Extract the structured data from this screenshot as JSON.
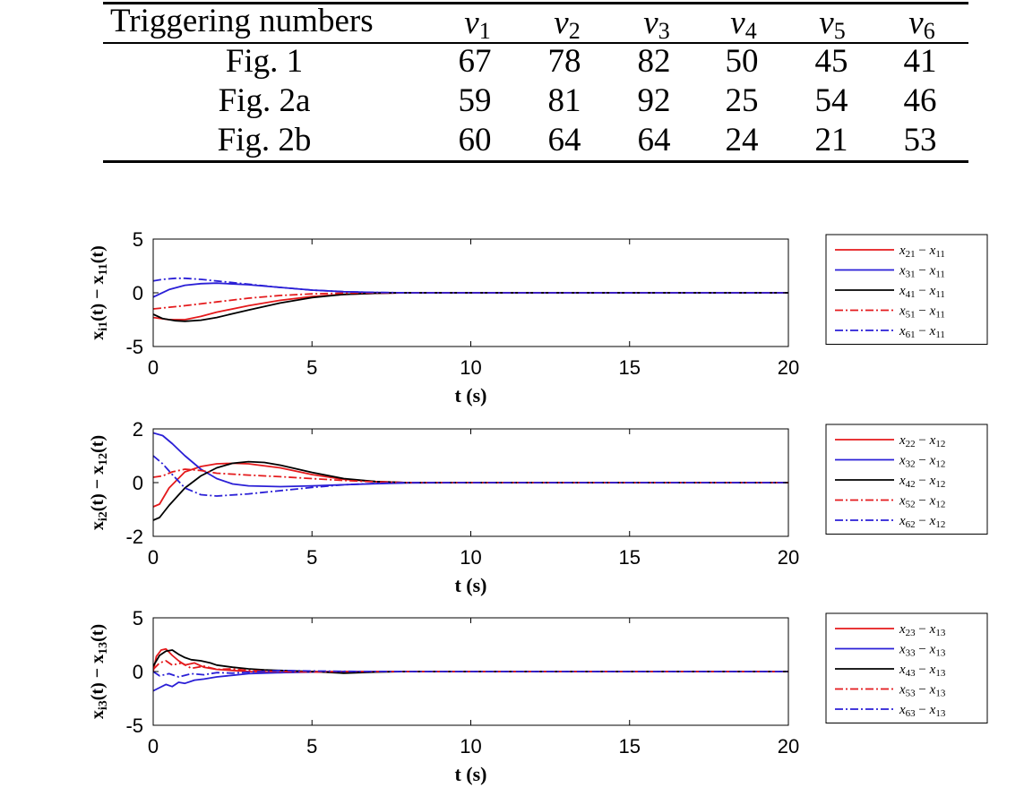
{
  "table": {
    "header": [
      "Triggering numbers",
      "v1",
      "v2",
      "v3",
      "v4",
      "v5",
      "v6"
    ],
    "header_vars": [
      {
        "base": "v",
        "sub": "1"
      },
      {
        "base": "v",
        "sub": "2"
      },
      {
        "base": "v",
        "sub": "3"
      },
      {
        "base": "v",
        "sub": "4"
      },
      {
        "base": "v",
        "sub": "5"
      },
      {
        "base": "v",
        "sub": "6"
      }
    ],
    "rows": [
      {
        "label": "Fig. 1",
        "values": [
          "67",
          "78",
          "82",
          "50",
          "45",
          "41"
        ]
      },
      {
        "label": "Fig. 2a",
        "values": [
          "59",
          "81",
          "92",
          "25",
          "54",
          "46"
        ]
      },
      {
        "label": "Fig. 2b",
        "values": [
          "60",
          "64",
          "64",
          "24",
          "21",
          "53"
        ]
      }
    ]
  },
  "chart_data": [
    {
      "type": "line",
      "xlabel": "t (s)",
      "ylabel": "x_i1(t) - x_11(t)",
      "ylabel_parts": {
        "a": "x",
        "asub": "i1",
        "b": "(t) − x",
        "bsub": "11",
        "c": "(t)"
      },
      "xlim": [
        0,
        20
      ],
      "ylim": [
        -5,
        5
      ],
      "xticks": [
        "0",
        "5",
        "10",
        "15",
        "20"
      ],
      "yticks": [
        "5",
        "0",
        "-5"
      ],
      "grid": false,
      "legend": "right",
      "series": [
        {
          "name": "x21 - x11",
          "legend_parts": [
            "x",
            "21",
            "x",
            "11"
          ],
          "color": "#e41a1c",
          "dash": "solid",
          "x": [
            0,
            0.5,
            1,
            1.5,
            2,
            3,
            4,
            5,
            6,
            7,
            8,
            10,
            20
          ],
          "y": [
            -2.3,
            -2.5,
            -2.5,
            -2.2,
            -1.8,
            -1.2,
            -0.7,
            -0.35,
            -0.15,
            -0.05,
            0,
            0,
            0
          ]
        },
        {
          "name": "x31 - x11",
          "legend_parts": [
            "x",
            "31",
            "x",
            "11"
          ],
          "color": "#2a1fd6",
          "dash": "solid",
          "x": [
            0,
            0.5,
            1,
            1.5,
            2,
            3,
            4,
            5,
            6,
            7,
            8,
            10,
            20
          ],
          "y": [
            -0.4,
            0.3,
            0.7,
            0.85,
            0.9,
            0.75,
            0.5,
            0.25,
            0.1,
            0.03,
            0,
            0,
            0
          ]
        },
        {
          "name": "x41 - x11",
          "legend_parts": [
            "x",
            "41",
            "x",
            "11"
          ],
          "color": "#000000",
          "dash": "solid",
          "x": [
            0,
            0.3,
            0.7,
            1,
            1.5,
            2,
            3,
            4,
            5,
            6,
            7,
            8,
            10,
            20
          ],
          "y": [
            -2.0,
            -2.4,
            -2.6,
            -2.65,
            -2.55,
            -2.3,
            -1.6,
            -0.95,
            -0.45,
            -0.15,
            -0.04,
            0,
            0,
            0
          ]
        },
        {
          "name": "x51 - x11",
          "legend_parts": [
            "x",
            "51",
            "x",
            "11"
          ],
          "color": "#e41a1c",
          "dash": "dashdot",
          "x": [
            0,
            1,
            2,
            3,
            4,
            5,
            6,
            7,
            8,
            10,
            20
          ],
          "y": [
            -1.5,
            -1.2,
            -0.85,
            -0.5,
            -0.25,
            -0.1,
            -0.03,
            0,
            0,
            0,
            0
          ]
        },
        {
          "name": "x61 - x11",
          "legend_parts": [
            "x",
            "61",
            "x",
            "11"
          ],
          "color": "#2a1fd6",
          "dash": "dashdot",
          "x": [
            0,
            0.3,
            0.7,
            1,
            1.5,
            2,
            3,
            4,
            5,
            6,
            7,
            8,
            10,
            20
          ],
          "y": [
            1.1,
            1.25,
            1.35,
            1.35,
            1.25,
            1.1,
            0.8,
            0.5,
            0.25,
            0.1,
            0.03,
            0,
            0,
            0
          ]
        }
      ]
    },
    {
      "type": "line",
      "xlabel": "t (s)",
      "ylabel": "x_i2(t) - x_12(t)",
      "ylabel_parts": {
        "a": "x",
        "asub": "i2",
        "b": "(t) − x",
        "bsub": "12",
        "c": "(t)"
      },
      "xlim": [
        0,
        20
      ],
      "ylim": [
        -2,
        2
      ],
      "xticks": [
        "0",
        "5",
        "10",
        "15",
        "20"
      ],
      "yticks": [
        "2",
        "0",
        "-2"
      ],
      "grid": false,
      "legend": "right",
      "series": [
        {
          "name": "x22 - x12",
          "legend_parts": [
            "x",
            "22",
            "x",
            "12"
          ],
          "color": "#e41a1c",
          "dash": "solid",
          "x": [
            0,
            0.2,
            0.5,
            1,
            1.5,
            2,
            2.5,
            3,
            4,
            5,
            6,
            7,
            8,
            10,
            20
          ],
          "y": [
            -0.9,
            -0.8,
            -0.2,
            0.4,
            0.6,
            0.7,
            0.72,
            0.7,
            0.55,
            0.3,
            0.12,
            0.04,
            0,
            0,
            0
          ]
        },
        {
          "name": "x32 - x12",
          "legend_parts": [
            "x",
            "32",
            "x",
            "12"
          ],
          "color": "#2a1fd6",
          "dash": "solid",
          "x": [
            0,
            0.3,
            0.6,
            1,
            1.5,
            2,
            2.5,
            3,
            4,
            5,
            6,
            7,
            8,
            10,
            20
          ],
          "y": [
            1.85,
            1.75,
            1.45,
            1.0,
            0.5,
            0.15,
            -0.05,
            -0.12,
            -0.15,
            -0.12,
            -0.08,
            -0.04,
            -0.01,
            0,
            0
          ]
        },
        {
          "name": "x42 - x12",
          "legend_parts": [
            "x",
            "42",
            "x",
            "12"
          ],
          "color": "#000000",
          "dash": "solid",
          "x": [
            0,
            0.2,
            0.5,
            1,
            1.5,
            2,
            2.5,
            3,
            3.5,
            4,
            5,
            6,
            7,
            8,
            10,
            20
          ],
          "y": [
            -1.4,
            -1.3,
            -0.85,
            -0.2,
            0.25,
            0.55,
            0.72,
            0.78,
            0.75,
            0.65,
            0.38,
            0.15,
            0.04,
            0,
            0,
            0
          ]
        },
        {
          "name": "x52 - x12",
          "legend_parts": [
            "x",
            "52",
            "x",
            "12"
          ],
          "color": "#e41a1c",
          "dash": "dashdot",
          "x": [
            0,
            0.3,
            0.6,
            1,
            1.5,
            2,
            3,
            4,
            5,
            6,
            7,
            8,
            10,
            20
          ],
          "y": [
            0.2,
            0.25,
            0.4,
            0.5,
            0.45,
            0.35,
            0.28,
            0.22,
            0.15,
            0.08,
            0.03,
            0,
            0,
            0
          ]
        },
        {
          "name": "x62 - x12",
          "legend_parts": [
            "x",
            "62",
            "x",
            "12"
          ],
          "color": "#2a1fd6",
          "dash": "dashdot",
          "x": [
            0,
            0.3,
            0.6,
            1,
            1.5,
            2,
            3,
            4,
            5,
            6,
            7,
            8,
            10,
            20
          ],
          "y": [
            1.0,
            0.7,
            0.3,
            -0.2,
            -0.45,
            -0.5,
            -0.42,
            -0.3,
            -0.18,
            -0.08,
            -0.03,
            0,
            0,
            0
          ]
        }
      ]
    },
    {
      "type": "line",
      "xlabel": "t (s)",
      "ylabel": "x_i3(t) - x_13(t)",
      "ylabel_parts": {
        "a": "x",
        "asub": "i3",
        "b": "(t) − x",
        "bsub": "13",
        "c": "(t)"
      },
      "xlim": [
        0,
        20
      ],
      "ylim": [
        -5,
        5
      ],
      "xticks": [
        "0",
        "5",
        "10",
        "15",
        "20"
      ],
      "yticks": [
        "5",
        "0",
        "-5"
      ],
      "grid": false,
      "legend": "right",
      "series": [
        {
          "name": "x23 - x13",
          "legend_parts": [
            "x",
            "23",
            "x",
            "13"
          ],
          "color": "#e41a1c",
          "dash": "solid",
          "x": [
            0,
            0.1,
            0.25,
            0.4,
            0.6,
            0.8,
            1.0,
            1.3,
            1.6,
            2,
            2.5,
            3,
            4,
            5,
            6,
            7,
            8,
            10,
            20
          ],
          "y": [
            0,
            1.4,
            2.0,
            2.1,
            1.5,
            1.0,
            0.6,
            0.8,
            0.4,
            0.2,
            0.1,
            0,
            -0.1,
            0,
            0,
            0,
            0,
            0,
            0
          ]
        },
        {
          "name": "x33 - x13",
          "legend_parts": [
            "x",
            "33",
            "x",
            "13"
          ],
          "color": "#2a1fd6",
          "dash": "solid",
          "x": [
            0,
            0.2,
            0.4,
            0.6,
            0.8,
            1.0,
            1.3,
            1.6,
            2,
            2.5,
            3,
            4,
            5,
            6,
            8,
            10,
            20
          ],
          "y": [
            -1.8,
            -1.5,
            -1.2,
            -1.4,
            -1.0,
            -1.1,
            -0.8,
            -0.7,
            -0.5,
            -0.35,
            -0.2,
            -0.1,
            -0.05,
            0,
            0,
            0,
            0
          ]
        },
        {
          "name": "x43 - x13",
          "legend_parts": [
            "x",
            "43",
            "x",
            "13"
          ],
          "color": "#000000",
          "dash": "solid",
          "x": [
            0,
            0.2,
            0.4,
            0.6,
            0.8,
            1.0,
            1.2,
            1.5,
            1.8,
            2,
            2.5,
            3,
            3.5,
            4,
            5,
            6,
            7,
            8,
            10,
            20
          ],
          "y": [
            0.5,
            1.5,
            1.9,
            2.0,
            1.6,
            1.3,
            1.1,
            1.0,
            0.8,
            0.6,
            0.4,
            0.25,
            0.15,
            0.1,
            0,
            -0.15,
            -0.05,
            0,
            0,
            0
          ]
        },
        {
          "name": "x53 - x13",
          "legend_parts": [
            "x",
            "53",
            "x",
            "13"
          ],
          "color": "#e41a1c",
          "dash": "dashdot",
          "x": [
            0,
            0.2,
            0.4,
            0.6,
            0.9,
            1.2,
            1.6,
            2,
            2.5,
            3,
            4,
            5,
            6,
            8,
            10,
            20
          ],
          "y": [
            0.2,
            0.8,
            1.0,
            0.6,
            0.8,
            0.3,
            0.5,
            0.2,
            0.25,
            0.1,
            0,
            -0.05,
            0,
            0,
            0,
            0
          ]
        },
        {
          "name": "x63 - x13",
          "legend_parts": [
            "x",
            "63",
            "x",
            "13"
          ],
          "color": "#2a1fd6",
          "dash": "dashdot",
          "x": [
            0,
            0.2,
            0.5,
            0.8,
            1.2,
            1.6,
            2,
            2.5,
            3,
            4,
            5,
            6,
            8,
            10,
            20
          ],
          "y": [
            0,
            -0.4,
            -0.2,
            -0.5,
            -0.2,
            -0.3,
            -0.1,
            -0.15,
            -0.05,
            0.1,
            0.05,
            0.02,
            0,
            0,
            0
          ]
        }
      ]
    }
  ]
}
